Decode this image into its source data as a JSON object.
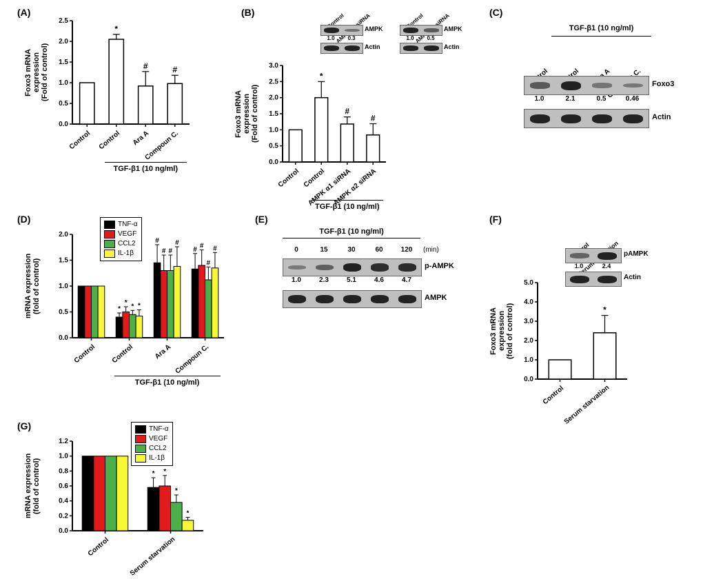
{
  "colors": {
    "series": {
      "tnf": "#000000",
      "vegf": "#e31a1c",
      "ccl2": "#4daf4a",
      "il1b": "#f7f733"
    },
    "bar_outline": "#000000",
    "background": "#ffffff",
    "blot_bg": "#bfbfbf",
    "band": "#222222"
  },
  "fonts": {
    "label_pt": 11,
    "tick_pt": 10,
    "panel_pt": 14
  },
  "panels": {
    "A": {
      "type": "bar",
      "ylabel": "Foxo3 mRNA expression\n(Fold of control)",
      "ylim": [
        0,
        2.5
      ],
      "ytick_step": 0.5,
      "categories": [
        "Control",
        "Control",
        "Ara A",
        "Compoun C."
      ],
      "values": [
        1.0,
        2.05,
        0.92,
        0.98
      ],
      "errors": [
        0,
        0.12,
        0.35,
        0.2
      ],
      "sigs": [
        "",
        "*",
        "#",
        "#"
      ],
      "treatment": "TGF-β1 (10 ng/ml)",
      "treatment_span": [
        1,
        3
      ]
    },
    "B": {
      "type": "bar",
      "ylabel": "Foxo3 mRNA expression\n(Fold of control)",
      "ylim": [
        0,
        3.0
      ],
      "ytick_step": 0.5,
      "categories": [
        "Control",
        "Control",
        "AMPK α1 siRNA",
        "AMPK α2 siRNA"
      ],
      "values": [
        1.0,
        2.0,
        1.18,
        0.84
      ],
      "errors": [
        0,
        0.5,
        0.22,
        0.35
      ],
      "sigs": [
        "",
        "*",
        "#",
        "#"
      ],
      "treatment": "TGF-β1 (10 ng/ml)",
      "treatment_span": [
        1,
        3
      ],
      "insets": [
        {
          "title": "AMPK α1 siRNA",
          "cols": [
            "Control",
            ""
          ],
          "rows": [
            {
              "label": "AMPK",
              "vals": [
                "1.0",
                "0.3"
              ],
              "int": [
                1.0,
                0.3
              ]
            },
            {
              "label": "Actin",
              "vals": [
                "",
                ""
              ],
              "int": [
                1.0,
                1.0
              ]
            }
          ]
        },
        {
          "title": "AMPK α2 siRNA",
          "cols": [
            "Control",
            ""
          ],
          "rows": [
            {
              "label": "AMPK",
              "vals": [
                "1.0",
                "0.5"
              ],
              "int": [
                1.0,
                0.5
              ]
            },
            {
              "label": "Actin",
              "vals": [
                "",
                ""
              ],
              "int": [
                1.0,
                1.0
              ]
            }
          ]
        }
      ]
    },
    "C": {
      "type": "blot",
      "treatment": "TGF-β1 (10 ng/ml)",
      "lanes": [
        "Control",
        "Control",
        "Ara A",
        "Compoun C."
      ],
      "rows": [
        {
          "label": "Foxo3",
          "vals": [
            "1.0",
            "2.1",
            "0.5",
            "0.46"
          ],
          "int": [
            0.5,
            1.0,
            0.25,
            0.23
          ]
        },
        {
          "label": "Actin",
          "vals": [
            "",
            "",
            "",
            ""
          ],
          "int": [
            1.0,
            1.0,
            1.0,
            1.0
          ]
        }
      ]
    },
    "D": {
      "type": "grouped-bar",
      "ylabel": "mRNA expression\n(fold of control)",
      "ylim": [
        0,
        2.0
      ],
      "ytick_step": 0.5,
      "series": [
        {
          "name": "TNF-α",
          "color": "#000000"
        },
        {
          "name": "VEGF",
          "color": "#e31a1c"
        },
        {
          "name": "CCL2",
          "color": "#4daf4a"
        },
        {
          "name": "IL-1β",
          "color": "#f7f733"
        }
      ],
      "categories": [
        "Control",
        "Control",
        "Ara A",
        "Compoun C."
      ],
      "values": [
        [
          1.0,
          1.0,
          1.0,
          1.0
        ],
        [
          0.4,
          0.5,
          0.45,
          0.42
        ],
        [
          1.45,
          1.3,
          1.3,
          1.38
        ],
        [
          1.33,
          1.4,
          1.12,
          1.35
        ]
      ],
      "errors": [
        [
          0,
          0,
          0,
          0
        ],
        [
          0.08,
          0.1,
          0.08,
          0.12
        ],
        [
          0.35,
          0.3,
          0.3,
          0.38
        ],
        [
          0.3,
          0.3,
          0.25,
          0.3
        ]
      ],
      "sigs": [
        [
          "",
          "",
          "",
          ""
        ],
        [
          "*",
          "*",
          "*",
          "*"
        ],
        [
          "#",
          "#",
          "#",
          "#"
        ],
        [
          "#",
          "#",
          "#",
          "#"
        ]
      ],
      "treatment": "TGF-β1 (10 ng/ml)",
      "treatment_span": [
        1,
        3
      ]
    },
    "E": {
      "type": "blot",
      "treatment": "TGF-β1 (10 ng/ml)",
      "time_label": "(min)",
      "lanes": [
        "0",
        "15",
        "30",
        "60",
        "120"
      ],
      "rows": [
        {
          "label": "p-AMPK",
          "vals": [
            "1.0",
            "2.3",
            "5.1",
            "4.6",
            "4.7"
          ],
          "int": [
            0.2,
            0.45,
            1.0,
            0.9,
            0.92
          ]
        },
        {
          "label": "AMPK",
          "vals": [
            "",
            "",
            "",
            "",
            ""
          ],
          "int": [
            1.0,
            1.0,
            1.0,
            1.0,
            1.0
          ]
        }
      ]
    },
    "F": {
      "type": "bar",
      "ylabel": "Foxo3 mRNA expression\n(fold of control)",
      "ylim": [
        0,
        5
      ],
      "ytick_step": 1,
      "categories": [
        "Control",
        "Serum starvation"
      ],
      "values": [
        1.0,
        2.4
      ],
      "errors": [
        0,
        0.9
      ],
      "sigs": [
        "",
        "*"
      ],
      "inset": {
        "lanes": [
          "Control",
          "Serum starvation"
        ],
        "rows": [
          {
            "label": "pAMPK",
            "vals": [
              "1.0",
              "2.4"
            ],
            "int": [
              0.4,
              1.0
            ]
          },
          {
            "label": "Actin",
            "vals": [
              "",
              ""
            ],
            "int": [
              1.0,
              1.0
            ]
          }
        ]
      }
    },
    "G": {
      "type": "grouped-bar",
      "ylabel": "mRNA expression\n(fold of control)",
      "ylim": [
        0,
        1.2
      ],
      "ytick_step": 0.2,
      "series": [
        {
          "name": "TNF-α",
          "color": "#000000"
        },
        {
          "name": "VEGF",
          "color": "#e31a1c"
        },
        {
          "name": "CCL2",
          "color": "#4daf4a"
        },
        {
          "name": "IL-1β",
          "color": "#f7f733"
        }
      ],
      "categories": [
        "Control",
        "Serum starvation"
      ],
      "values": [
        [
          1.0,
          1.0,
          1.0,
          1.0
        ],
        [
          0.58,
          0.6,
          0.38,
          0.14
        ]
      ],
      "errors": [
        [
          0,
          0,
          0,
          0
        ],
        [
          0.13,
          0.14,
          0.1,
          0.04
        ]
      ],
      "sigs": [
        [
          "",
          "",
          "",
          ""
        ],
        [
          "*",
          "*",
          "*",
          "*"
        ]
      ]
    }
  }
}
